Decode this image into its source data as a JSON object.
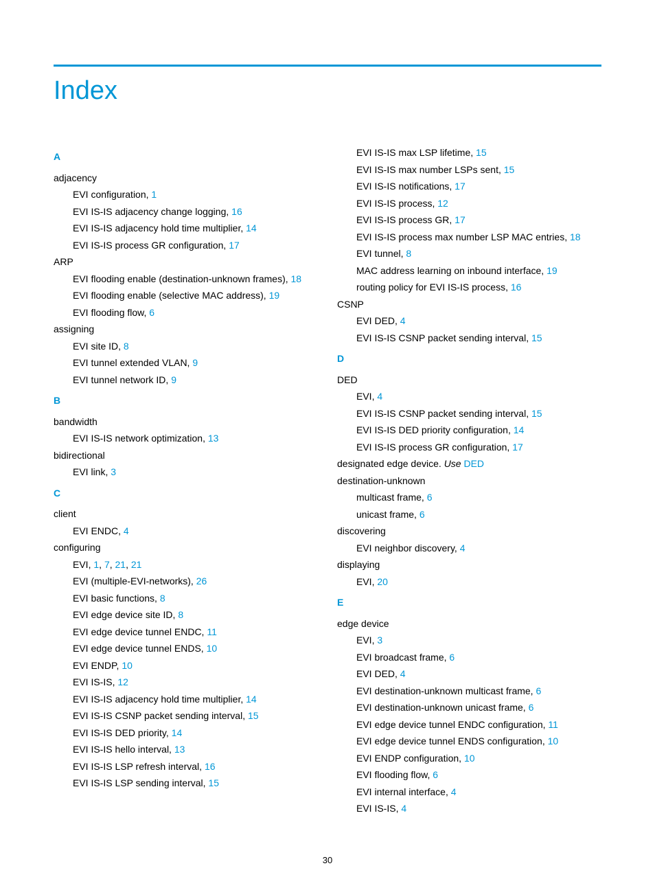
{
  "title": "Index",
  "page_number": "30",
  "colors": {
    "accent": "#0096d6",
    "text": "#000000",
    "background": "#ffffff"
  },
  "left": {
    "A": {
      "letter": "A",
      "t1": "adjacency",
      "t1s1": "EVI configuration, ",
      "t1s1p": "1",
      "t1s2": "EVI IS-IS adjacency change logging, ",
      "t1s2p": "16",
      "t1s3": "EVI IS-IS adjacency hold time multiplier, ",
      "t1s3p": "14",
      "t1s4": "EVI IS-IS process GR configuration, ",
      "t1s4p": "17",
      "t2": "ARP",
      "t2s1": "EVI flooding enable (destination-unknown frames), ",
      "t2s1p": "18",
      "t2s2": "EVI flooding enable (selective MAC address), ",
      "t2s2p": "19",
      "t2s3": "EVI flooding flow, ",
      "t2s3p": "6",
      "t3": "assigning",
      "t3s1": "EVI site ID, ",
      "t3s1p": "8",
      "t3s2": "EVI tunnel extended VLAN, ",
      "t3s2p": "9",
      "t3s3": "EVI tunnel network ID, ",
      "t3s3p": "9"
    },
    "B": {
      "letter": "B",
      "t1": "bandwidth",
      "t1s1": "EVI IS-IS network optimization, ",
      "t1s1p": "13",
      "t2": "bidirectional",
      "t2s1": "EVI link, ",
      "t2s1p": "3"
    },
    "C": {
      "letter": "C",
      "t1": "client",
      "t1s1": "EVI ENDC, ",
      "t1s1p": "4",
      "t2": "configuring",
      "t2s1a": "EVI, ",
      "t2s1p1": "1",
      "t2s1c1": ", ",
      "t2s1p2": "7",
      "t2s1c2": ", ",
      "t2s1p3": "21",
      "t2s1c3": ", ",
      "t2s1p4": "21",
      "t2s2": "EVI (multiple-EVI-networks), ",
      "t2s2p": "26",
      "t2s3": "EVI basic functions, ",
      "t2s3p": "8",
      "t2s4": "EVI edge device site ID, ",
      "t2s4p": "8",
      "t2s5": "EVI edge device tunnel ENDC, ",
      "t2s5p": "11",
      "t2s6": "EVI edge device tunnel ENDS, ",
      "t2s6p": "10",
      "t2s7": "EVI ENDP, ",
      "t2s7p": "10",
      "t2s8": "EVI IS-IS, ",
      "t2s8p": "12",
      "t2s9": "EVI IS-IS adjacency hold time multiplier, ",
      "t2s9p": "14",
      "t2s10": "EVI IS-IS CSNP packet sending interval, ",
      "t2s10p": "15",
      "t2s11": "EVI IS-IS DED priority, ",
      "t2s11p": "14",
      "t2s12": "EVI IS-IS hello interval, ",
      "t2s12p": "13",
      "t2s13": "EVI IS-IS LSP refresh interval, ",
      "t2s13p": "16",
      "t2s14": "EVI IS-IS LSP sending interval, ",
      "t2s14p": "15"
    }
  },
  "right": {
    "Ccont": {
      "s1": "EVI IS-IS max LSP lifetime, ",
      "s1p": "15",
      "s2": "EVI IS-IS max number LSPs sent, ",
      "s2p": "15",
      "s3": "EVI IS-IS notifications, ",
      "s3p": "17",
      "s4": "EVI IS-IS process, ",
      "s4p": "12",
      "s5": "EVI IS-IS process GR, ",
      "s5p": "17",
      "s6": "EVI IS-IS process max number LSP MAC entries, ",
      "s6p": "18",
      "s7": "EVI tunnel, ",
      "s7p": "8",
      "s8": "MAC address learning on inbound interface, ",
      "s8p": "19",
      "s9": "routing policy for EVI IS-IS process, ",
      "s9p": "16",
      "t3": "CSNP",
      "t3s1": "EVI DED, ",
      "t3s1p": "4",
      "t3s2": "EVI IS-IS CSNP packet sending interval, ",
      "t3s2p": "15"
    },
    "D": {
      "letter": "D",
      "t1": "DED",
      "t1s1": "EVI, ",
      "t1s1p": "4",
      "t1s2": "EVI IS-IS CSNP packet sending interval, ",
      "t1s2p": "15",
      "t1s3": "EVI IS-IS DED priority configuration, ",
      "t1s3p": "14",
      "t1s4": "EVI IS-IS process GR configuration, ",
      "t1s4p": "17",
      "t2a": "designated edge device. ",
      "t2b": "Use",
      "t2c": " ",
      "t2d": "DED",
      "t3": "destination-unknown",
      "t3s1": "multicast frame, ",
      "t3s1p": "6",
      "t3s2": "unicast frame, ",
      "t3s2p": "6",
      "t4": "discovering",
      "t4s1": "EVI neighbor discovery, ",
      "t4s1p": "4",
      "t5": "displaying",
      "t5s1": "EVI, ",
      "t5s1p": "20"
    },
    "E": {
      "letter": "E",
      "t1": "edge device",
      "t1s1": "EVI, ",
      "t1s1p": "3",
      "t1s2": "EVI broadcast frame, ",
      "t1s2p": "6",
      "t1s3": "EVI DED, ",
      "t1s3p": "4",
      "t1s4": "EVI destination-unknown multicast frame, ",
      "t1s4p": "6",
      "t1s5": "EVI destination-unknown unicast frame, ",
      "t1s5p": "6",
      "t1s6": "EVI edge device tunnel ENDC configuration, ",
      "t1s6p": "11",
      "t1s7": "EVI edge device tunnel ENDS configuration, ",
      "t1s7p": "10",
      "t1s8": "EVI ENDP configuration, ",
      "t1s8p": "10",
      "t1s9": "EVI flooding flow, ",
      "t1s9p": "6",
      "t1s10": "EVI internal interface, ",
      "t1s10p": "4",
      "t1s11": "EVI IS-IS, ",
      "t1s11p": "4"
    }
  }
}
